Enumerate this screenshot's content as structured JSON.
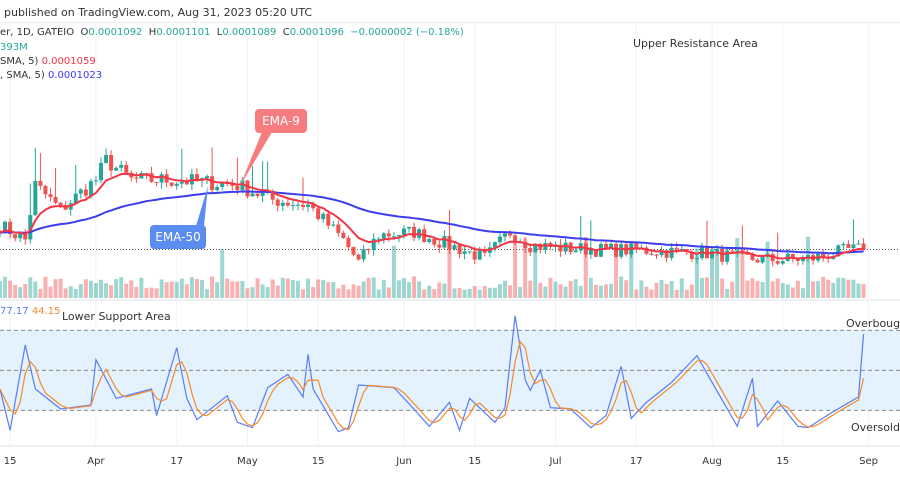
{
  "header": {
    "published": "published on TradingView.com, Aug 31, 2023 05:20 UTC"
  },
  "legend": {
    "symbol": "er, 1D, GATEIO",
    "o_label": "O",
    "o": "0.0001092",
    "h_label": "H",
    "h": "0.0001101",
    "l_label": "L",
    "l": "0.0001089",
    "c_label": "C",
    "c": "0.0001096",
    "change": "−0.0000002 (−0.18%)",
    "volume": "393M",
    "ema9_label": "SMA, 5)",
    "ema9_value": "0.0001059",
    "ema50_label": ", SMA, 5)",
    "ema50_value": "0.0001023",
    "stoch_k": "77.17",
    "stoch_d": "44.15"
  },
  "annotations": {
    "upper": "Upper Resistance Area",
    "lower": "Lower Support Area",
    "ema9": "EMA-9",
    "ema50": "EMA-50",
    "overbought": "Overbought",
    "oversold": "Oversold"
  },
  "colors": {
    "up": "#26a69a",
    "down": "#ef5350",
    "ema9": "#f23645",
    "ema50": "#3d3df0",
    "stoch_k": "#5b7cf5",
    "stoch_d": "#f58a2c",
    "band": "#e3f2fd",
    "ema9_box": "#f77c80",
    "ema50_box": "#5b8cf0"
  },
  "chart_data": [
    {
      "type": "candlestick",
      "title": "",
      "ylim": [
        9.8e-05,
        0.00016
      ],
      "close_samples": [
        [
          "2023-03-13",
          0.0001152
        ],
        [
          "2023-03-18",
          0.0001118
        ],
        [
          "2023-03-20",
          0.0001244
        ],
        [
          "2023-03-25",
          0.0001187
        ],
        [
          "2023-04-01",
          0.0001256
        ],
        [
          "2023-04-03",
          0.0001301
        ],
        [
          "2023-04-08",
          0.0001256
        ],
        [
          "2023-04-15",
          0.0001256
        ],
        [
          "2023-04-22",
          0.0001251
        ],
        [
          "2023-04-29",
          0.0001244
        ],
        [
          "2023-05-06",
          0.000121
        ],
        [
          "2023-05-13",
          0.0001198
        ],
        [
          "2023-05-20",
          0.0001118
        ],
        [
          "2023-05-23",
          0.0001067
        ],
        [
          "2023-05-27",
          0.0001129
        ],
        [
          "2023-06-03",
          0.0001136
        ],
        [
          "2023-06-10",
          0.0001106
        ],
        [
          "2023-06-17",
          0.0001076
        ],
        [
          "2023-06-22",
          0.0001136
        ],
        [
          "2023-06-26",
          0.0001106
        ],
        [
          "2023-07-03",
          0.0001099
        ],
        [
          "2023-07-10",
          0.0001095
        ],
        [
          "2023-07-17",
          0.0001095
        ],
        [
          "2023-07-24",
          0.0001091
        ],
        [
          "2023-07-31",
          0.0001088
        ],
        [
          "2023-08-07",
          0.0001076
        ],
        [
          "2023-08-14",
          0.0001072
        ],
        [
          "2023-08-21",
          0.0001076
        ],
        [
          "2023-08-28",
          0.0001095
        ],
        [
          "2023-08-31",
          0.0001096
        ]
      ],
      "overlays": [
        "EMA-9",
        "EMA-50"
      ],
      "volume": true
    },
    {
      "type": "line",
      "title": "",
      "ylim": [
        0,
        100
      ],
      "levels": [
        80,
        50,
        20
      ],
      "x_ticks": [
        [
          "2023-03-15",
          "15"
        ],
        [
          "2023-04-01",
          "Apr"
        ],
        [
          "2023-04-17",
          "17"
        ],
        [
          "2023-05-01",
          "May"
        ],
        [
          "2023-05-15",
          "15"
        ],
        [
          "2023-06-01",
          "Jun"
        ],
        [
          "2023-06-15",
          "15"
        ],
        [
          "2023-07-01",
          "Jul"
        ],
        [
          "2023-07-17",
          "17"
        ],
        [
          "2023-08-01",
          "Aug"
        ],
        [
          "2023-08-15",
          "15"
        ],
        [
          "2023-09-01",
          "Sep"
        ]
      ],
      "stoch_k": [
        [
          "2023-03-13",
          36
        ],
        [
          "2023-03-15",
          5
        ],
        [
          "2023-03-18",
          69
        ],
        [
          "2023-03-20",
          36
        ],
        [
          "2023-03-25",
          21
        ],
        [
          "2023-03-31",
          24
        ],
        [
          "2023-04-01",
          58
        ],
        [
          "2023-04-05",
          29
        ],
        [
          "2023-04-12",
          36
        ],
        [
          "2023-04-13",
          16
        ],
        [
          "2023-04-17",
          67
        ],
        [
          "2023-04-19",
          29
        ],
        [
          "2023-04-21",
          13
        ],
        [
          "2023-04-27",
          31
        ],
        [
          "2023-04-29",
          11
        ],
        [
          "2023-05-02",
          7
        ],
        [
          "2023-05-05",
          37
        ],
        [
          "2023-05-09",
          47
        ],
        [
          "2023-05-12",
          30
        ],
        [
          "2023-05-13",
          62
        ],
        [
          "2023-05-14",
          36
        ],
        [
          "2023-05-19",
          4
        ],
        [
          "2023-05-21",
          7
        ],
        [
          "2023-05-23",
          39
        ],
        [
          "2023-05-30",
          37
        ],
        [
          "2023-06-02",
          25
        ],
        [
          "2023-06-06",
          8
        ],
        [
          "2023-06-10",
          26
        ],
        [
          "2023-06-12",
          5
        ],
        [
          "2023-06-14",
          29
        ],
        [
          "2023-06-19",
          11
        ],
        [
          "2023-06-21",
          22
        ],
        [
          "2023-06-23",
          91
        ],
        [
          "2023-06-25",
          43
        ],
        [
          "2023-06-26",
          35
        ],
        [
          "2023-06-28",
          50
        ],
        [
          "2023-06-30",
          22
        ],
        [
          "2023-07-04",
          21
        ],
        [
          "2023-07-08",
          7
        ],
        [
          "2023-07-11",
          16
        ],
        [
          "2023-07-14",
          53
        ],
        [
          "2023-07-16",
          14
        ],
        [
          "2023-07-19",
          26
        ],
        [
          "2023-07-24",
          41
        ],
        [
          "2023-07-29",
          61
        ],
        [
          "2023-08-01",
          41
        ],
        [
          "2023-08-06",
          8
        ],
        [
          "2023-08-09",
          44
        ],
        [
          "2023-08-10",
          8
        ],
        [
          "2023-08-14",
          27
        ],
        [
          "2023-08-18",
          8
        ],
        [
          "2023-08-20",
          7
        ],
        [
          "2023-08-25",
          19
        ],
        [
          "2023-08-30",
          30
        ],
        [
          "2023-08-31",
          77.17
        ]
      ]
    }
  ]
}
